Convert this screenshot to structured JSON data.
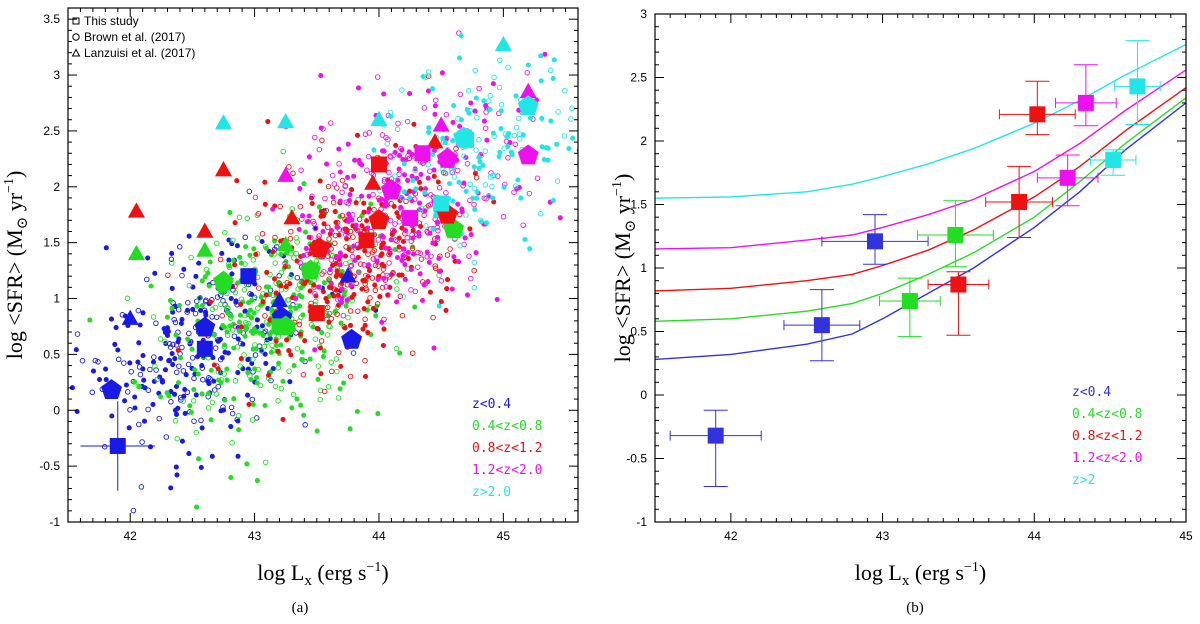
{
  "chart_data": [
    {
      "type": "scatter",
      "panel_label": "(a)",
      "xlabel_main": "log L",
      "xlabel_sub": "x",
      "xlabel_unit": " (erg s",
      "xlabel_exp": "−1",
      "xlabel_close": ")",
      "ylabel_main": "log <SFR> (M",
      "ylabel_sun": "⊙",
      "ylabel_unit": " yr",
      "ylabel_exp": "−1",
      "ylabel_close": ")",
      "xlim": [
        41.5,
        45.6
      ],
      "ylim": [
        -1,
        3.6
      ],
      "xticks": [
        42,
        43,
        44,
        45
      ],
      "yticks": [
        -1,
        -0.5,
        0,
        0.5,
        1,
        1.5,
        2,
        2.5,
        3,
        3.5
      ],
      "source_legend": [
        {
          "marker": "square",
          "label": "This study"
        },
        {
          "marker": "circle",
          "label": "Brown et al. (2017)"
        },
        {
          "marker": "triangle",
          "label": "Lanzuisi et al. (2017)"
        }
      ],
      "redshift_legend": [
        {
          "label": "z<0.4",
          "color": "#1a1ae6"
        },
        {
          "label": "0.4<z<0.8",
          "color": "#22dd22"
        },
        {
          "label": "0.8<z<1.2",
          "color": "#ee1111"
        },
        {
          "label": "1.2<z<2.0",
          "color": "#ee11ee"
        },
        {
          "label": "z>2.0",
          "color": "#22e6e6"
        }
      ],
      "cloud": [
        {
          "color": "#1a1ae6",
          "cx": 42.5,
          "cy": 0.55,
          "sx": 0.45,
          "sy": 0.45,
          "n": 320
        },
        {
          "color": "#22dd22",
          "cx": 43.1,
          "cy": 0.85,
          "sx": 0.5,
          "sy": 0.45,
          "n": 420
        },
        {
          "color": "#ee1111",
          "cx": 43.8,
          "cy": 1.35,
          "sx": 0.45,
          "sy": 0.42,
          "n": 360
        },
        {
          "color": "#ee11ee",
          "cx": 44.2,
          "cy": 1.8,
          "sx": 0.45,
          "sy": 0.5,
          "n": 380
        },
        {
          "color": "#22e6e6",
          "cx": 44.8,
          "cy": 2.3,
          "sx": 0.4,
          "sy": 0.45,
          "n": 180
        }
      ],
      "squares": [
        {
          "color": "#1a1ae6",
          "x": 41.9,
          "y": -0.32,
          "xerr": 0.3,
          "yerr": 0.4
        },
        {
          "color": "#1a1ae6",
          "x": 42.6,
          "y": 0.55,
          "xerr": 0.0,
          "yerr": 0.0
        },
        {
          "color": "#1a1ae6",
          "x": 42.95,
          "y": 1.2,
          "xerr": 0.0,
          "yerr": 0.0
        },
        {
          "color": "#22dd22",
          "x": 43.2,
          "y": 0.75,
          "xerr": 0.0,
          "yerr": 0.0
        },
        {
          "color": "#22dd22",
          "x": 43.45,
          "y": 1.25,
          "xerr": 0.0,
          "yerr": 0.0
        },
        {
          "color": "#ee1111",
          "x": 43.5,
          "y": 0.87,
          "xerr": 0.0,
          "yerr": 0.0
        },
        {
          "color": "#ee1111",
          "x": 43.9,
          "y": 1.52,
          "xerr": 0.0,
          "yerr": 0.0
        },
        {
          "color": "#ee1111",
          "x": 44.0,
          "y": 2.2,
          "xerr": 0.0,
          "yerr": 0.0
        },
        {
          "color": "#ee11ee",
          "x": 44.25,
          "y": 1.72,
          "xerr": 0.0,
          "yerr": 0.0
        },
        {
          "color": "#ee11ee",
          "x": 44.35,
          "y": 2.3,
          "xerr": 0.0,
          "yerr": 0.0
        },
        {
          "color": "#22e6e6",
          "x": 44.5,
          "y": 1.85,
          "xerr": 0.0,
          "yerr": 0.0
        },
        {
          "color": "#22e6e6",
          "x": 44.7,
          "y": 2.42,
          "xerr": 0.0,
          "yerr": 0.0
        }
      ],
      "pentagons": [
        {
          "color": "#1a1ae6",
          "x": 41.85,
          "y": 0.18
        },
        {
          "color": "#1a1ae6",
          "x": 42.6,
          "y": 0.74
        },
        {
          "color": "#1a1ae6",
          "x": 43.22,
          "y": 0.83
        },
        {
          "color": "#1a1ae6",
          "x": 43.78,
          "y": 0.63
        },
        {
          "color": "#22dd22",
          "x": 42.75,
          "y": 1.15
        },
        {
          "color": "#22dd22",
          "x": 43.25,
          "y": 0.75
        },
        {
          "color": "#22dd22",
          "x": 43.45,
          "y": 1.25
        },
        {
          "color": "#22dd22",
          "x": 44.6,
          "y": 1.62
        },
        {
          "color": "#ee1111",
          "x": 43.52,
          "y": 1.45
        },
        {
          "color": "#ee1111",
          "x": 44.0,
          "y": 1.7
        },
        {
          "color": "#ee1111",
          "x": 44.55,
          "y": 1.75
        },
        {
          "color": "#ee11ee",
          "x": 44.1,
          "y": 1.97
        },
        {
          "color": "#ee11ee",
          "x": 44.55,
          "y": 2.25
        },
        {
          "color": "#ee11ee",
          "x": 45.2,
          "y": 2.28
        },
        {
          "color": "#22e6e6",
          "x": 44.68,
          "y": 2.44
        },
        {
          "color": "#22e6e6",
          "x": 45.2,
          "y": 2.72
        }
      ],
      "triangles": [
        {
          "color": "#1a1ae6",
          "x": 42.0,
          "y": 0.82
        },
        {
          "color": "#1a1ae6",
          "x": 43.2,
          "y": 0.98
        },
        {
          "color": "#1a1ae6",
          "x": 43.75,
          "y": 1.2
        },
        {
          "color": "#22dd22",
          "x": 42.05,
          "y": 1.4
        },
        {
          "color": "#22dd22",
          "x": 42.6,
          "y": 1.43
        },
        {
          "color": "#22dd22",
          "x": 43.25,
          "y": 1.48
        },
        {
          "color": "#ee1111",
          "x": 42.05,
          "y": 1.78
        },
        {
          "color": "#ee1111",
          "x": 42.6,
          "y": 1.6
        },
        {
          "color": "#ee1111",
          "x": 42.75,
          "y": 2.15
        },
        {
          "color": "#ee1111",
          "x": 43.3,
          "y": 1.72
        },
        {
          "color": "#ee1111",
          "x": 43.95,
          "y": 2.03
        },
        {
          "color": "#ee1111",
          "x": 44.0,
          "y": 2.21
        },
        {
          "color": "#ee1111",
          "x": 44.45,
          "y": 2.4
        },
        {
          "color": "#ee11ee",
          "x": 43.25,
          "y": 2.1
        },
        {
          "color": "#ee11ee",
          "x": 44.5,
          "y": 2.55
        },
        {
          "color": "#ee11ee",
          "x": 45.2,
          "y": 2.85
        },
        {
          "color": "#22e6e6",
          "x": 42.75,
          "y": 2.57
        },
        {
          "color": "#22e6e6",
          "x": 43.25,
          "y": 2.58
        },
        {
          "color": "#22e6e6",
          "x": 44.0,
          "y": 2.6
        },
        {
          "color": "#22e6e6",
          "x": 45.0,
          "y": 3.27
        }
      ]
    },
    {
      "type": "line",
      "panel_label": "(b)",
      "xlabel_main": "log L",
      "xlabel_sub": "x",
      "xlabel_unit": " (erg s",
      "xlabel_exp": "−1",
      "xlabel_close": ")",
      "ylabel_main": "log <SFR> (M",
      "ylabel_sun": "⊙",
      "ylabel_unit": " yr",
      "ylabel_exp": "−1",
      "ylabel_close": ")",
      "xlim": [
        41.5,
        45
      ],
      "ylim": [
        -1,
        3
      ],
      "xticks": [
        42,
        43,
        44,
        45
      ],
      "yticks": [
        -1,
        -0.5,
        0,
        0.5,
        1,
        1.5,
        2,
        2.5,
        3
      ],
      "legend": [
        {
          "label": "z<0.4",
          "color": "#3333dd"
        },
        {
          "label": "0.4<z<0.8",
          "color": "#22dd22"
        },
        {
          "label": "0.8<z<1.2",
          "color": "#ee1111"
        },
        {
          "label": "1.2<z<2.0",
          "color": "#ee11ee"
        },
        {
          "label": "z>2",
          "color": "#22e6e6"
        }
      ],
      "series": [
        {
          "name": "z<0.4",
          "color": "#3333dd",
          "x": [
            41.5,
            42.0,
            42.5,
            42.8,
            43.0,
            43.3,
            43.6,
            44.0,
            44.3,
            44.6,
            45.0
          ],
          "y": [
            0.28,
            0.32,
            0.4,
            0.48,
            0.6,
            0.8,
            1.0,
            1.32,
            1.6,
            1.93,
            2.3
          ]
        },
        {
          "name": "0.4<z<0.8",
          "color": "#22dd22",
          "x": [
            41.5,
            42.0,
            42.5,
            42.8,
            43.0,
            43.3,
            43.6,
            44.0,
            44.3,
            44.6,
            45.0
          ],
          "y": [
            0.58,
            0.6,
            0.66,
            0.72,
            0.8,
            0.95,
            1.12,
            1.4,
            1.68,
            1.98,
            2.34
          ]
        },
        {
          "name": "0.8<z<1.2",
          "color": "#ee1111",
          "x": [
            41.5,
            42.0,
            42.5,
            42.8,
            43.0,
            43.3,
            43.6,
            44.0,
            44.3,
            44.6,
            45.0
          ],
          "y": [
            0.82,
            0.84,
            0.9,
            0.95,
            1.02,
            1.14,
            1.3,
            1.56,
            1.8,
            2.08,
            2.42
          ]
        },
        {
          "name": "1.2<z<2.0",
          "color": "#ee11ee",
          "x": [
            41.5,
            42.0,
            42.5,
            42.8,
            43.0,
            43.3,
            43.6,
            44.0,
            44.3,
            44.6,
            45.0
          ],
          "y": [
            1.15,
            1.16,
            1.22,
            1.26,
            1.32,
            1.42,
            1.54,
            1.76,
            1.98,
            2.24,
            2.56
          ]
        },
        {
          "name": "z>2",
          "color": "#22e6e6",
          "x": [
            41.5,
            42.0,
            42.5,
            42.8,
            43.0,
            43.3,
            43.6,
            44.0,
            44.3,
            44.6,
            45.0
          ],
          "y": [
            1.55,
            1.56,
            1.6,
            1.66,
            1.72,
            1.82,
            1.94,
            2.14,
            2.32,
            2.52,
            2.76
          ]
        }
      ],
      "points": [
        {
          "color": "#3333dd",
          "x": 41.9,
          "y": -0.32,
          "xl": 0.3,
          "xr": 0.3,
          "yl": 0.4,
          "yh": 0.2
        },
        {
          "color": "#3333dd",
          "x": 42.6,
          "y": 0.55,
          "xl": 0.25,
          "xr": 0.25,
          "yl": 0.28,
          "yh": 0.28
        },
        {
          "color": "#3333dd",
          "x": 42.95,
          "y": 1.21,
          "xl": 0.35,
          "xr": 0.35,
          "yl": 0.18,
          "yh": 0.21
        },
        {
          "color": "#22dd22",
          "x": 43.18,
          "y": 0.74,
          "xl": 0.2,
          "xr": 0.2,
          "yl": 0.28,
          "yh": 0.18
        },
        {
          "color": "#22dd22",
          "x": 43.48,
          "y": 1.26,
          "xl": 0.25,
          "xr": 0.25,
          "yl": 0.25,
          "yh": 0.27
        },
        {
          "color": "#ee1111",
          "x": 43.5,
          "y": 0.87,
          "xl": 0.2,
          "xr": 0.2,
          "yl": 0.4,
          "yh": 0.1
        },
        {
          "color": "#ee1111",
          "x": 43.9,
          "y": 1.52,
          "xl": 0.22,
          "xr": 0.22,
          "yl": 0.28,
          "yh": 0.28
        },
        {
          "color": "#ee1111",
          "x": 44.02,
          "y": 2.21,
          "xl": 0.25,
          "xr": 0.25,
          "yl": 0.16,
          "yh": 0.26
        },
        {
          "color": "#ee11ee",
          "x": 44.22,
          "y": 1.71,
          "xl": 0.2,
          "xr": 0.2,
          "yl": 0.22,
          "yh": 0.18
        },
        {
          "color": "#ee11ee",
          "x": 44.34,
          "y": 2.3,
          "xl": 0.2,
          "xr": 0.2,
          "yl": 0.18,
          "yh": 0.3
        },
        {
          "color": "#22e6e6",
          "x": 44.52,
          "y": 1.85,
          "xl": 0.15,
          "xr": 0.15,
          "yl": 0.12,
          "yh": 0.08
        },
        {
          "color": "#22e6e6",
          "x": 44.68,
          "y": 2.43,
          "xl": 0.15,
          "xr": 0.15,
          "yl": 0.3,
          "yh": 0.36
        }
      ]
    }
  ]
}
